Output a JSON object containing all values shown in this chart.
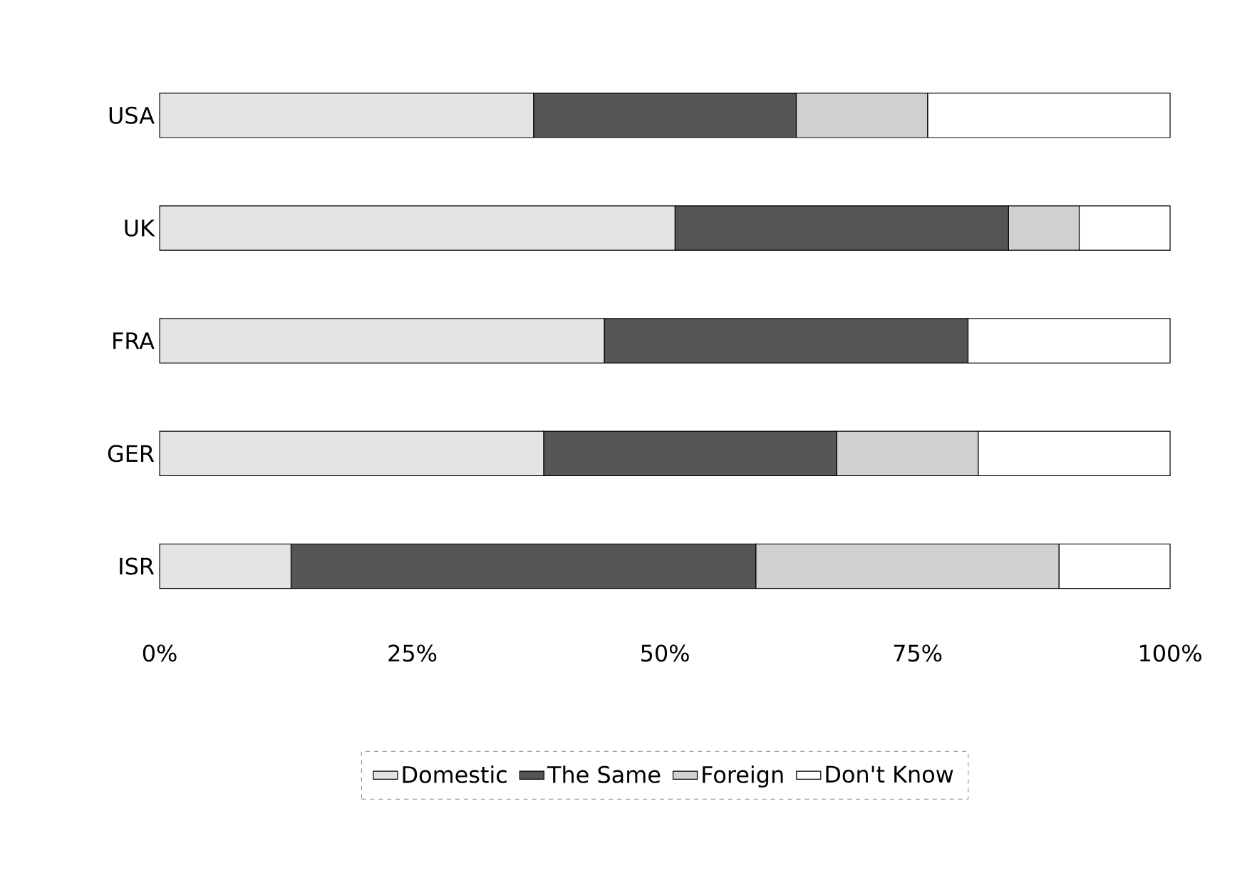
{
  "chart_data": {
    "type": "bar",
    "orientation": "horizontal",
    "stacked": true,
    "categories": [
      "USA",
      "UK",
      "FRA",
      "GER",
      "ISR"
    ],
    "series": [
      {
        "name": "Domestic",
        "color": "#e4e4e4",
        "values": [
          37,
          51,
          44,
          38,
          13
        ]
      },
      {
        "name": "The Same",
        "color": "#555555",
        "values": [
          26,
          33,
          36,
          29,
          46
        ]
      },
      {
        "name": "Foreign",
        "color": "#d0d0d0",
        "values": [
          13,
          7,
          0,
          14,
          30
        ]
      },
      {
        "name": "Don't Know",
        "color": "#ffffff",
        "values": [
          24,
          9,
          20,
          19,
          11
        ]
      }
    ],
    "xlim": [
      0,
      100
    ],
    "xticks": [
      {
        "value": 0,
        "label": "0%"
      },
      {
        "value": 25,
        "label": "25%"
      },
      {
        "value": 50,
        "label": "50%"
      },
      {
        "value": 75,
        "label": "75%"
      },
      {
        "value": 100,
        "label": "100%"
      }
    ],
    "grid": false,
    "legend": "bottom"
  }
}
